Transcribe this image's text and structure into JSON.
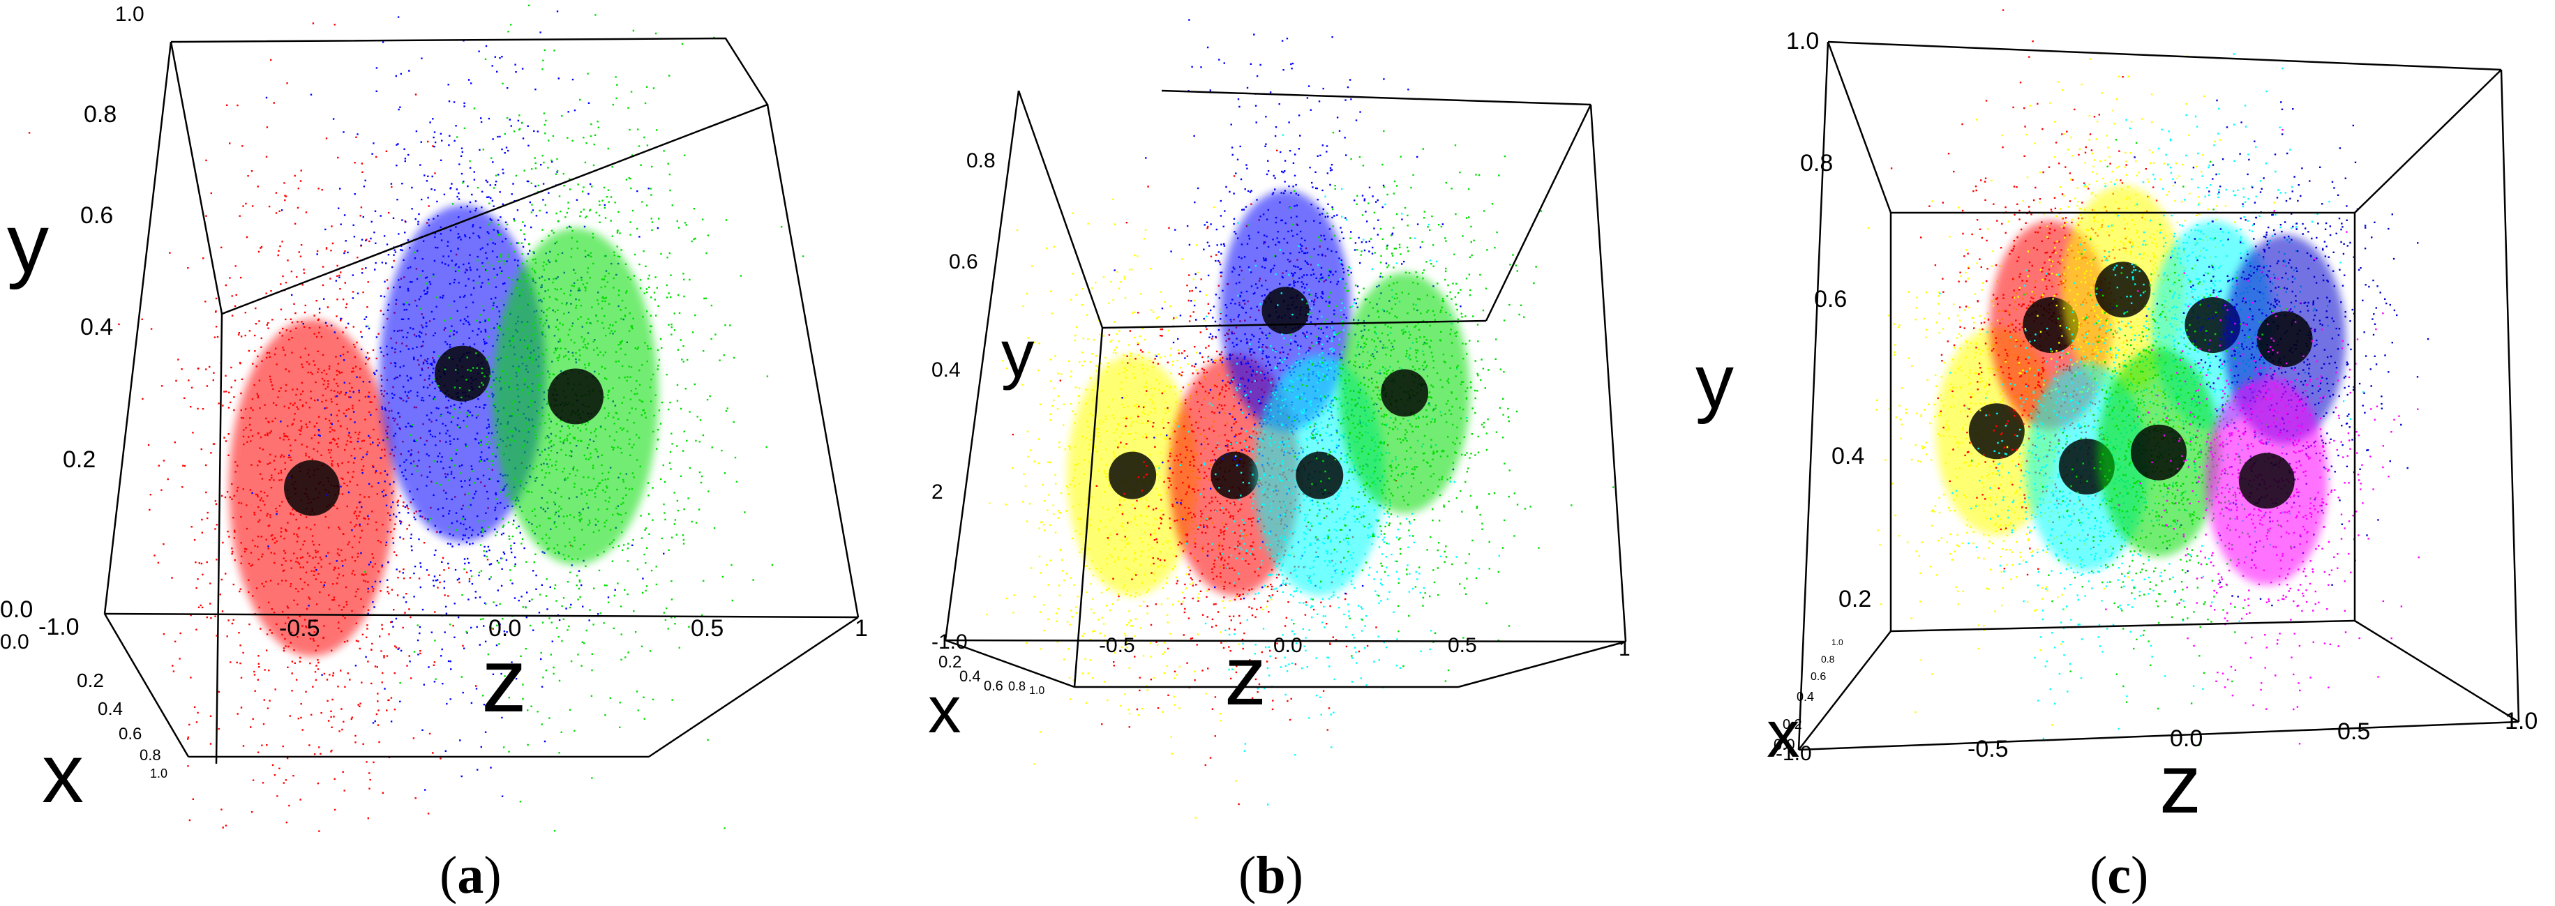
{
  "chart_data": [
    {
      "panel": "a",
      "type": "scatter",
      "caption": [
        "(",
        "a",
        ")"
      ],
      "axis_letters": {
        "x": "x",
        "y": "y",
        "z": "z"
      },
      "y_ticks": [
        "1.0",
        "0.8",
        "0.6",
        "0.4",
        "0.2",
        "0.0"
      ],
      "z_ticks": [
        "-1.0",
        "-0.5",
        "0.0",
        "0.5",
        "1"
      ],
      "x_ticks": [
        "0.0",
        "0.2",
        "0.4",
        "0.6",
        "0.8",
        "1.0"
      ],
      "clusters": [
        {
          "color": "#ff0000",
          "center": {
            "z": -0.45,
            "y": 0.22
          }
        },
        {
          "color": "#0000ff",
          "center": {
            "z": -0.05,
            "y": 0.42
          }
        },
        {
          "color": "#00dd00",
          "center": {
            "z": 0.25,
            "y": 0.38
          }
        }
      ]
    },
    {
      "panel": "b",
      "type": "scatter",
      "caption": [
        "(",
        "b",
        ")"
      ],
      "axis_letters": {
        "x": "x",
        "y": "y",
        "z": "z"
      },
      "y_ticks": [
        "0.8",
        "0.6",
        "0.4",
        "2"
      ],
      "z_ticks": [
        "-1.0",
        "-0.5",
        "0.0",
        "0.5",
        "1"
      ],
      "x_ticks": [
        "0.2",
        "0.4",
        "0.6",
        "0.8",
        "1.0"
      ],
      "clusters": [
        {
          "color": "#ffff00",
          "center": {
            "z": -0.45,
            "y": 0.3
          }
        },
        {
          "color": "#ff0000",
          "center": {
            "z": -0.15,
            "y": 0.3
          }
        },
        {
          "color": "#0000ff",
          "center": {
            "z": 0.0,
            "y": 0.6
          }
        },
        {
          "color": "#00ffff",
          "center": {
            "z": 0.1,
            "y": 0.3
          }
        },
        {
          "color": "#00dd00",
          "center": {
            "z": 0.35,
            "y": 0.45
          }
        }
      ]
    },
    {
      "panel": "c",
      "type": "scatter",
      "caption": [
        "(",
        "c",
        ")"
      ],
      "axis_letters": {
        "x": "x",
        "y": "y",
        "z": "z"
      },
      "y_ticks": [
        "1.0",
        "0.8",
        "0.6",
        "0.4",
        "0.2"
      ],
      "z_ticks": [
        "-1.0",
        "-0.5",
        "0.0",
        "0.5",
        "1.0"
      ],
      "x_ticks": [
        "0.0",
        "0.2",
        "0.4",
        "0.6",
        "0.8",
        "1.0"
      ],
      "clusters": [
        {
          "color": "#ffff00",
          "center": {
            "z": -0.45,
            "y": 0.45
          }
        },
        {
          "color": "#ff0000",
          "center": {
            "z": -0.3,
            "y": 0.6
          }
        },
        {
          "color": "#ffff00",
          "center": {
            "z": -0.1,
            "y": 0.65
          }
        },
        {
          "color": "#00ffff",
          "center": {
            "z": 0.15,
            "y": 0.6
          }
        },
        {
          "color": "#0000cc",
          "center": {
            "z": 0.35,
            "y": 0.58
          }
        },
        {
          "color": "#00ffff",
          "center": {
            "z": -0.2,
            "y": 0.4
          }
        },
        {
          "color": "#00dd00",
          "center": {
            "z": 0.0,
            "y": 0.42
          }
        },
        {
          "color": "#ff00ff",
          "center": {
            "z": 0.3,
            "y": 0.38
          }
        }
      ]
    }
  ]
}
